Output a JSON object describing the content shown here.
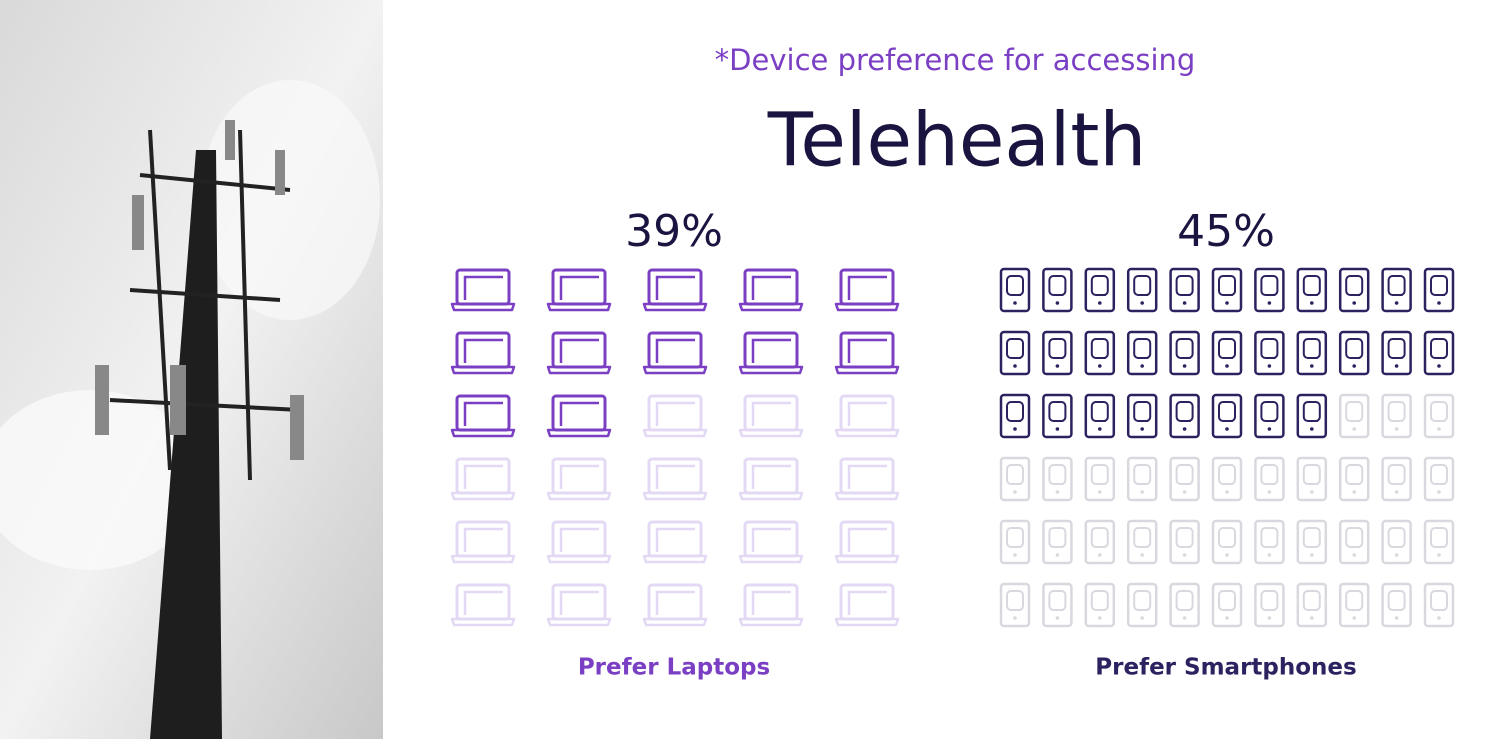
{
  "title": "Telehealth",
  "subtitle": "*Device preference for accessing",
  "chart_data": [
    {
      "type": "pictograph",
      "icon": "laptop",
      "values": [
        39
      ],
      "value_labels": [
        "39%"
      ],
      "label": "Prefer Laptops",
      "color": "#7b3fc4",
      "faded_color": "#e4d9f4"
    },
    {
      "type": "pictograph",
      "icon": "phone",
      "values": [
        45
      ],
      "value_labels": [
        "45%"
      ],
      "label": "Prefer Smartphones",
      "color": "#2b2260",
      "faded_color": "#d9d8df"
    }
  ]
}
